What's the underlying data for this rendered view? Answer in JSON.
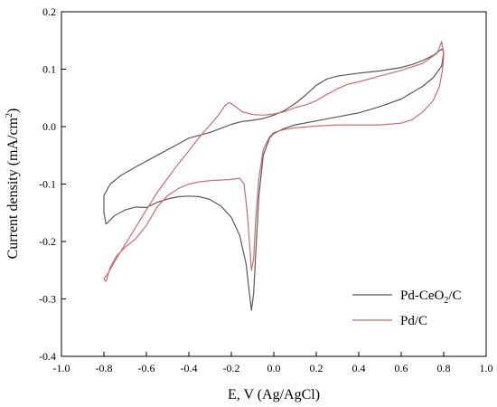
{
  "chart_data": {
    "type": "line",
    "xlabel": "E, V (Ag/AgCl)",
    "ylabel": {
      "main": "Current density (mA/cm",
      "sup": "2",
      "close": ")"
    },
    "xlim": [
      -1.0,
      1.0
    ],
    "ylim": [
      -0.4,
      0.2
    ],
    "xticks": [
      "-1.0",
      "-0.8",
      "-0.6",
      "-0.4",
      "-0.2",
      "0.0",
      "0.2",
      "0.4",
      "0.6",
      "0.8",
      "1.0"
    ],
    "yticks": [
      "-0.4",
      "-0.3",
      "-0.2",
      "-0.1",
      "0.0",
      "0.1",
      "0.2"
    ],
    "grid": false,
    "legend_position": "bottom-right",
    "series": [
      {
        "name": "Pd-CeO2/C",
        "legend_parts": {
          "pre": "Pd-CeO",
          "sub": "2",
          "post": "/C"
        },
        "color": "#595959",
        "points": [
          [
            -0.79,
            -0.17
          ],
          [
            -0.75,
            -0.155
          ],
          [
            -0.7,
            -0.145
          ],
          [
            -0.65,
            -0.14
          ],
          [
            -0.6,
            -0.141
          ],
          [
            -0.55,
            -0.132
          ],
          [
            -0.5,
            -0.126
          ],
          [
            -0.45,
            -0.122
          ],
          [
            -0.4,
            -0.121
          ],
          [
            -0.35,
            -0.122
          ],
          [
            -0.3,
            -0.127
          ],
          [
            -0.25,
            -0.138
          ],
          [
            -0.2,
            -0.158
          ],
          [
            -0.16,
            -0.19
          ],
          [
            -0.13,
            -0.24
          ],
          [
            -0.115,
            -0.29
          ],
          [
            -0.105,
            -0.32
          ],
          [
            -0.095,
            -0.29
          ],
          [
            -0.085,
            -0.22
          ],
          [
            -0.07,
            -0.12
          ],
          [
            -0.05,
            -0.05
          ],
          [
            -0.02,
            -0.02
          ],
          [
            0.0,
            -0.012
          ],
          [
            0.05,
            -0.003
          ],
          [
            0.1,
            0.003
          ],
          [
            0.2,
            0.01
          ],
          [
            0.3,
            0.017
          ],
          [
            0.4,
            0.024
          ],
          [
            0.5,
            0.035
          ],
          [
            0.6,
            0.048
          ],
          [
            0.7,
            0.07
          ],
          [
            0.75,
            0.085
          ],
          [
            0.79,
            0.105
          ],
          [
            0.8,
            0.13
          ],
          [
            0.79,
            0.135
          ],
          [
            0.75,
            0.124
          ],
          [
            0.7,
            0.115
          ],
          [
            0.65,
            0.108
          ],
          [
            0.6,
            0.103
          ],
          [
            0.5,
            0.097
          ],
          [
            0.4,
            0.093
          ],
          [
            0.3,
            0.088
          ],
          [
            0.25,
            0.083
          ],
          [
            0.2,
            0.072
          ],
          [
            0.15,
            0.055
          ],
          [
            0.1,
            0.04
          ],
          [
            0.05,
            0.028
          ],
          [
            0.0,
            0.02
          ],
          [
            -0.05,
            0.014
          ],
          [
            -0.1,
            0.011
          ],
          [
            -0.15,
            0.009
          ],
          [
            -0.2,
            0.004
          ],
          [
            -0.3,
            -0.01
          ],
          [
            -0.4,
            -0.02
          ],
          [
            -0.45,
            -0.03
          ],
          [
            -0.55,
            -0.05
          ],
          [
            -0.65,
            -0.07
          ],
          [
            -0.72,
            -0.085
          ],
          [
            -0.77,
            -0.1
          ],
          [
            -0.8,
            -0.12
          ],
          [
            -0.8,
            -0.15
          ],
          [
            -0.79,
            -0.17
          ]
        ]
      },
      {
        "name": "Pd/C",
        "legend_parts": {
          "pre": "Pd/C",
          "sub": "",
          "post": ""
        },
        "color": "#cf6b6b",
        "points": [
          [
            -0.79,
            -0.27
          ],
          [
            -0.77,
            -0.245
          ],
          [
            -0.74,
            -0.225
          ],
          [
            -0.7,
            -0.21
          ],
          [
            -0.65,
            -0.195
          ],
          [
            -0.6,
            -0.172
          ],
          [
            -0.55,
            -0.14
          ],
          [
            -0.5,
            -0.12
          ],
          [
            -0.45,
            -0.108
          ],
          [
            -0.4,
            -0.1
          ],
          [
            -0.35,
            -0.096
          ],
          [
            -0.3,
            -0.094
          ],
          [
            -0.25,
            -0.093
          ],
          [
            -0.2,
            -0.092
          ],
          [
            -0.16,
            -0.09
          ],
          [
            -0.14,
            -0.1
          ],
          [
            -0.125,
            -0.15
          ],
          [
            -0.115,
            -0.2
          ],
          [
            -0.105,
            -0.25
          ],
          [
            -0.095,
            -0.23
          ],
          [
            -0.085,
            -0.16
          ],
          [
            -0.07,
            -0.09
          ],
          [
            -0.05,
            -0.04
          ],
          [
            -0.02,
            -0.018
          ],
          [
            0.0,
            -0.01
          ],
          [
            0.05,
            -0.005
          ],
          [
            0.1,
            -0.002
          ],
          [
            0.2,
            0.001
          ],
          [
            0.3,
            0.003
          ],
          [
            0.4,
            0.003
          ],
          [
            0.5,
            0.003
          ],
          [
            0.6,
            0.006
          ],
          [
            0.65,
            0.012
          ],
          [
            0.7,
            0.025
          ],
          [
            0.75,
            0.045
          ],
          [
            0.78,
            0.07
          ],
          [
            0.795,
            0.1
          ],
          [
            0.8,
            0.125
          ],
          [
            0.79,
            0.148
          ],
          [
            0.77,
            0.128
          ],
          [
            0.7,
            0.11
          ],
          [
            0.6,
            0.098
          ],
          [
            0.5,
            0.088
          ],
          [
            0.4,
            0.078
          ],
          [
            0.35,
            0.074
          ],
          [
            0.3,
            0.066
          ],
          [
            0.25,
            0.056
          ],
          [
            0.2,
            0.045
          ],
          [
            0.15,
            0.038
          ],
          [
            0.1,
            0.033
          ],
          [
            0.05,
            0.026
          ],
          [
            0.0,
            0.022
          ],
          [
            -0.05,
            0.02
          ],
          [
            -0.1,
            0.021
          ],
          [
            -0.15,
            0.026
          ],
          [
            -0.18,
            0.035
          ],
          [
            -0.21,
            0.042
          ],
          [
            -0.23,
            0.037
          ],
          [
            -0.26,
            0.02
          ],
          [
            -0.3,
            0.003
          ],
          [
            -0.35,
            -0.018
          ],
          [
            -0.4,
            -0.042
          ],
          [
            -0.45,
            -0.065
          ],
          [
            -0.5,
            -0.09
          ],
          [
            -0.55,
            -0.115
          ],
          [
            -0.6,
            -0.145
          ],
          [
            -0.65,
            -0.175
          ],
          [
            -0.7,
            -0.205
          ],
          [
            -0.75,
            -0.235
          ],
          [
            -0.78,
            -0.255
          ],
          [
            -0.8,
            -0.265
          ],
          [
            -0.79,
            -0.27
          ]
        ]
      }
    ]
  }
}
